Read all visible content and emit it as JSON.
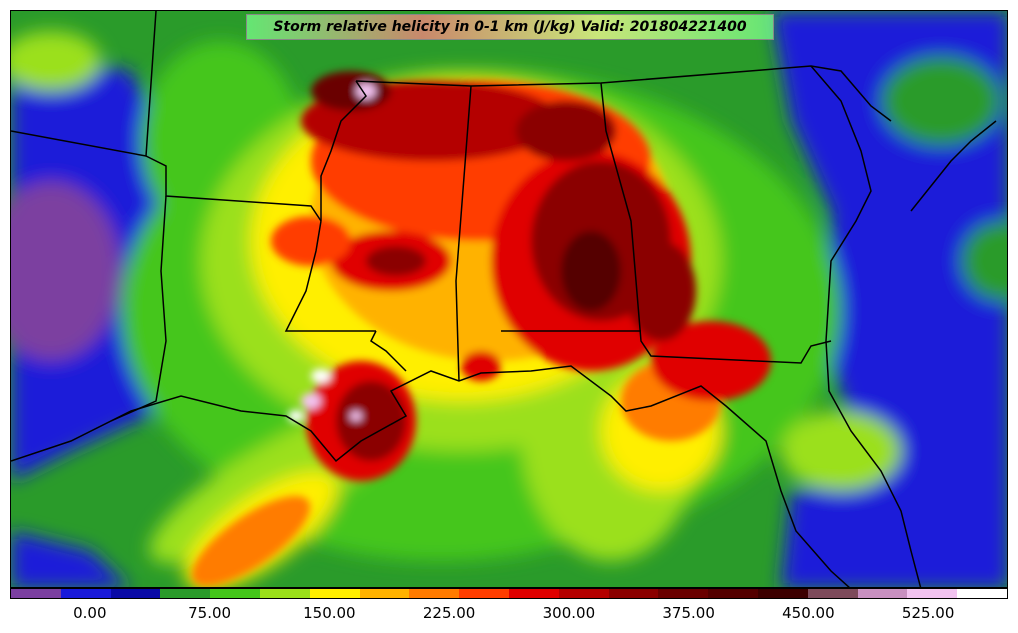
{
  "map": {
    "title": "Storm relative helicity in 0-1 km (J/kg) Valid: 201804221400",
    "variable": "Storm relative helicity in 0-1 km",
    "units": "J/kg",
    "valid_time": "201804221400"
  },
  "colorbar": {
    "colors": [
      "#7b3fa0",
      "#1a1ad9",
      "#0a0aa6",
      "#2a9b2a",
      "#44c61a",
      "#9be01a",
      "#ffef00",
      "#ffb200",
      "#ff7b00",
      "#ff3d00",
      "#e00000",
      "#b40000",
      "#8b0000",
      "#6a0000",
      "#540000",
      "#3c0000",
      "#7d4a5a",
      "#c890c0",
      "#f2c3f0",
      "#ffffff"
    ],
    "tick_labels": [
      "0.00",
      "75.00",
      "150.00",
      "225.00",
      "300.00",
      "375.00",
      "450.00",
      "525.00"
    ],
    "tick_values": [
      0,
      75,
      150,
      225,
      300,
      375,
      450,
      525
    ],
    "value_range": [
      -50,
      575
    ]
  }
}
